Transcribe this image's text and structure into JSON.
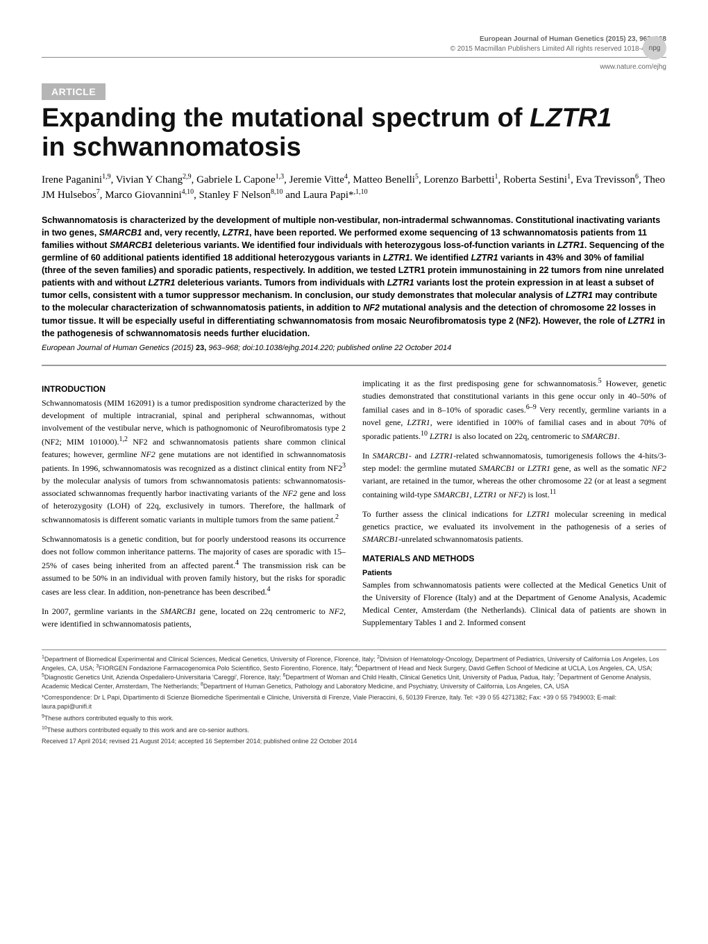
{
  "header": {
    "journal_line": "European Journal of Human Genetics (2015) 23, 963–968",
    "copyright_line": "© 2015 Macmillan Publishers Limited  All rights reserved 1018-4813/15",
    "website": "www.nature.com/ejhg",
    "npg_label": "npg"
  },
  "badge": {
    "label": "ARTICLE"
  },
  "title": {
    "line1_plain": "Expanding the mutational spectrum of ",
    "line1_ital": "LZTR1",
    "line2": "in schwannomatosis"
  },
  "authors_html": "Irene Paganini<sup>1,9</sup>, Vivian Y Chang<sup>2,9</sup>, Gabriele L Capone<sup>1,3</sup>, Jeremie Vitte<sup>4</sup>, Matteo Benelli<sup>5</sup>, Lorenzo Barbetti<sup>1</sup>, Roberta Sestini<sup>1</sup>, Eva Trevisson<sup>6</sup>, Theo JM Hulsebos<sup>7</sup>, Marco Giovannini<sup>4,10</sup>, Stanley F Nelson<sup>8,10</sup> and Laura Papi*<sup>,1,10</sup>",
  "abstract": "Schwannomatosis is characterized by the development of multiple non-vestibular, non-intradermal schwannomas. Constitutional inactivating variants in two genes, <span class=\"ital\">SMARCB1</span> and, very recently, <span class=\"ital\">LZTR1</span>, have been reported. We performed exome sequencing of 13 schwannomatosis patients from 11 families without <span class=\"ital\">SMARCB1</span> deleterious variants. We identified four individuals with heterozygous loss-of-function variants in <span class=\"ital\">LZTR1</span>. Sequencing of the germline of 60 additional patients identified 18 additional heterozygous variants in <span class=\"ital\">LZTR1</span>. We identified <span class=\"ital\">LZTR1</span> variants in 43% and 30% of familial (three of the seven families) and sporadic patients, respectively. In addition, we tested LZTR1 protein immunostaining in 22 tumors from nine unrelated patients with and without <span class=\"ital\">LZTR1</span> deleterious variants. Tumors from individuals with <span class=\"ital\">LZTR1</span> variants lost the protein expression in at least a subset of tumor cells, consistent with a tumor suppressor mechanism. In conclusion, our study demonstrates that molecular analysis of <span class=\"ital\">LZTR1</span> may contribute to the molecular characterization of schwannomatosis patients, in addition to <span class=\"ital\">NF2</span> mutational analysis and the detection of chromosome 22 losses in tumor tissue. It will be especially useful in differentiating schwannomatosis from mosaic Neurofibromatosis type 2 (NF2). However, the role of <span class=\"ital\">LZTR1</span> in the pathogenesis of schwannomatosis needs further elucidation.",
  "citation": {
    "journal": "European Journal of Human Genetics",
    "rest": " (2015) ",
    "volume": "23,",
    "pages": " 963–968; doi:10.1038/ejhg.2014.220; published online 22 October 2014"
  },
  "headings": {
    "intro": "INTRODUCTION",
    "methods": "MATERIALS AND METHODS",
    "patients": "Patients"
  },
  "body": {
    "col1_p1": "Schwannomatosis (MIM 162091) is a tumor predisposition syndrome characterized by the development of multiple intracranial, spinal and peripheral schwannomas, without involvement of the vestibular nerve, which is pathognomonic of Neurofibromatosis type 2 (NF2; MIM 101000).<sup>1,2</sup> NF2 and schwannomatosis patients share common clinical features; however, germline <span class=\"ital\">NF2</span> gene mutations are not identified in schwannomatosis patients. In 1996, schwannomatosis was recognized as a distinct clinical entity from NF2<sup>3</sup> by the molecular analysis of tumors from schwannomatosis patients: schwannomatosis-associated schwannomas frequently harbor inactivating variants of the <span class=\"ital\">NF2</span> gene and loss of heterozygosity (LOH) of 22q, exclusively in tumors. Therefore, the hallmark of schwannomatosis is different somatic variants in multiple tumors from the same patient.<sup>2</sup>",
    "col1_p2": "Schwannomatosis is a genetic condition, but for poorly understood reasons its occurrence does not follow common inheritance patterns. The majority of cases are sporadic with 15–25% of cases being inherited from an affected parent.<sup>4</sup> The transmission risk can be assumed to be 50% in an individual with proven family history, but the risks for sporadic cases are less clear. In addition, non-penetrance has been described.<sup>4</sup>",
    "col1_p3": "In 2007, germline variants in the <span class=\"ital\">SMARCB1</span> gene, located on 22q centromeric to <span class=\"ital\">NF2</span>, were identified in schwannomatosis patients,",
    "col2_p1": "implicating it as the first predisposing gene for schwannomatosis.<sup>5</sup> However, genetic studies demonstrated that constitutional variants in this gene occur only in 40–50% of familial cases and in 8–10% of sporadic cases.<sup>6–9</sup> Very recently, germline variants in a novel gene, <span class=\"ital\">LZTR1</span>, were identified in 100% of familial cases and in about 70% of sporadic patients.<sup>10</sup> <span class=\"ital\">LZTR1</span> is also located on 22q, centromeric to <span class=\"ital\">SMARCB1</span>.",
    "col2_p2": "In <span class=\"ital\">SMARCB1</span>- and <span class=\"ital\">LZTR1</span>-related schwannomatosis, tumorigenesis follows the 4-hits/3-step model: the germline mutated <span class=\"ital\">SMARCB1</span> or <span class=\"ital\">LZTR1</span> gene, as well as the somatic <span class=\"ital\">NF2</span> variant, are retained in the tumor, whereas the other chromosome 22 (or at least a segment containing wild-type <span class=\"ital\">SMARCB1</span>, <span class=\"ital\">LZTR1</span> or <span class=\"ital\">NF2</span>) is lost.<sup>11</sup>",
    "col2_p3": "To further assess the clinical indications for <span class=\"ital\">LZTR1</span> molecular screening in medical genetics practice, we evaluated its involvement in the pathogenesis of a series of <span class=\"ital\">SMARCB1</span>-unrelated schwannomatosis patients.",
    "col2_p4": "Samples from schwannomatosis patients were collected at the Medical Genetics Unit of the University of Florence (Italy) and at the Department of Genome Analysis, Academic Medical Center, Amsterdam (the Netherlands). Clinical data of patients are shown in Supplementary Tables 1 and 2. Informed consent"
  },
  "affiliations": {
    "p1": "<sup>1</sup>Department of Biomedical Experimental and Clinical Sciences, Medical Genetics, University of Florence, Florence, Italy; <sup>2</sup>Division of Hematology-Oncology, Department of Pediatrics, University of California Los Angeles, Los Angeles, CA, USA; <sup>3</sup>FIORGEN Fondazione Farmacogenomica Polo Scientifico, Sesto Fiorentino, Florence, Italy; <sup>4</sup>Department of Head and Neck Surgery, David Geffen School of Medicine at UCLA, Los Angeles, CA, USA; <sup>5</sup>Diagnostic Genetics Unit, Azienda Ospedaliero-Universitaria 'Careggi', Florence, Italy; <sup>6</sup>Department of Woman and Child Health, Clinical Genetics Unit, University of Padua, Padua, Italy; <sup>7</sup>Department of Genome Analysis, Academic Medical Center, Amsterdam, The Netherlands; <sup>8</sup>Department of Human Genetics, Pathology and Laboratory Medicine, and Psychiatry, University of California, Los Angeles, CA, USA",
    "p2": "*Correspondence: Dr L Papi, Dipartimento di Scienze Biomediche Sperimentali e Cliniche, Università di Firenze, Viale Pieraccini, 6, 50139 Firenze, Italy. Tel: +39 0 55 4271382; Fax: +39 0 55 7949003; E-mail: laura.papi@unifi.it",
    "p3": "<sup>9</sup>These authors contributed equally to this work.",
    "p4": "<sup>10</sup>These authors contributed equally to this work and are co-senior authors.",
    "p5": "Received 17 April 2014; revised 21 August 2014; accepted 16 September 2014; published online 22 October 2014"
  }
}
